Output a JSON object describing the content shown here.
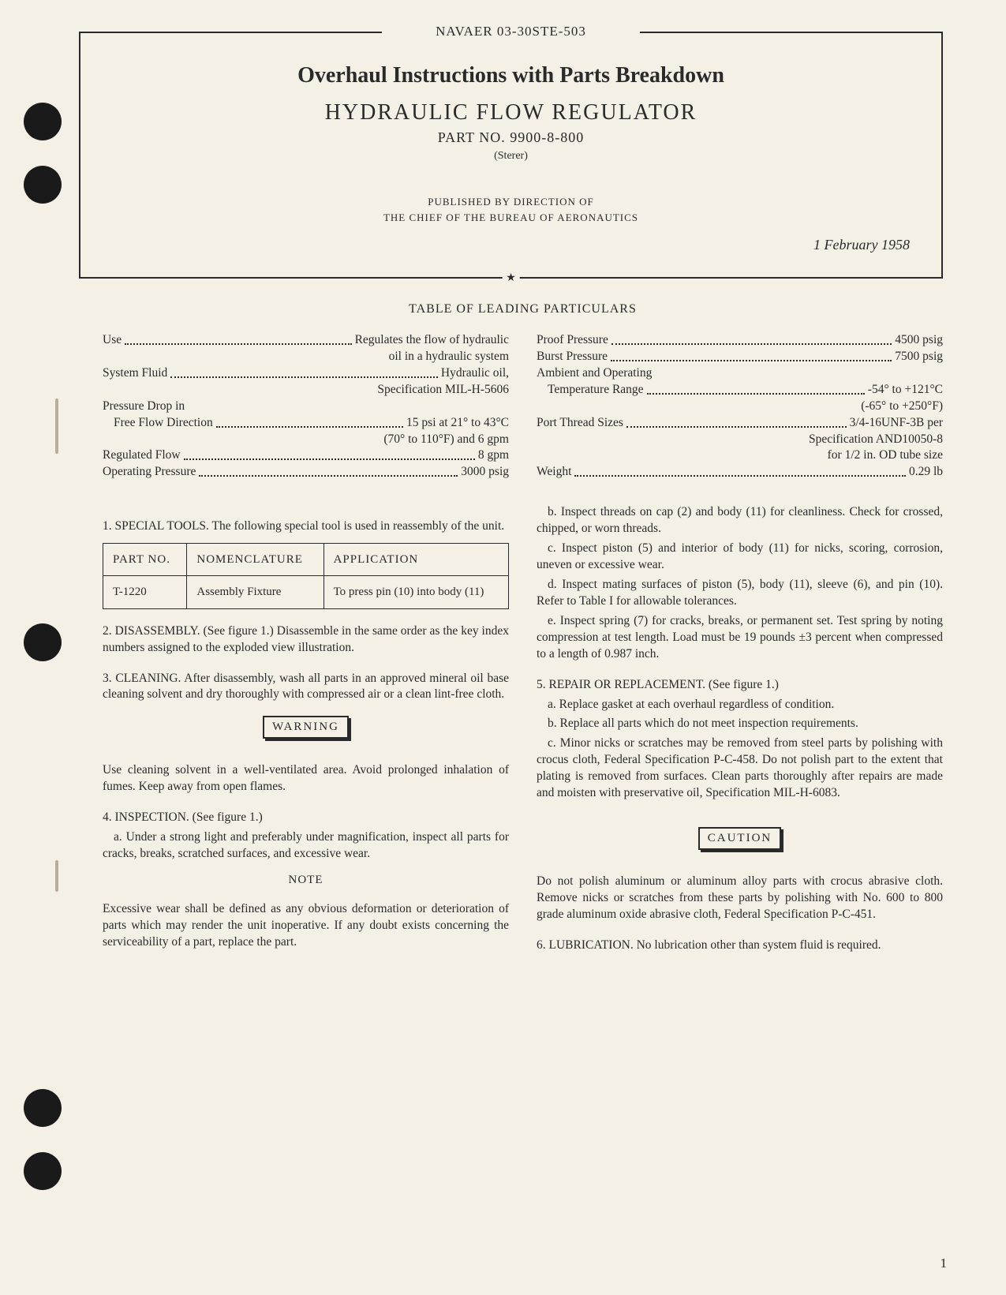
{
  "doc_id": "NAVAER 03-30STE-503",
  "title1": "Overhaul Instructions with Parts Breakdown",
  "title2": "HYDRAULIC FLOW REGULATOR",
  "part_no": "PART NO. 9900-8-800",
  "sterer": "(Sterer)",
  "published1": "PUBLISHED BY DIRECTION OF",
  "published2": "THE CHIEF OF THE BUREAU OF AERONAUTICS",
  "date": "1 February 1958",
  "table_heading": "TABLE OF LEADING PARTICULARS",
  "particulars_left": [
    {
      "label": "Use",
      "value": "Regulates the flow of hydraulic",
      "cont": "oil in a hydraulic system"
    },
    {
      "label": "System Fluid",
      "value": "Hydraulic oil,",
      "cont": "Specification MIL-H-5606"
    },
    {
      "label": "Pressure Drop in"
    },
    {
      "label": "Free Flow Direction",
      "indent": true,
      "value": "15 psi at 21° to 43°C",
      "cont": "(70° to 110°F) and 6 gpm"
    },
    {
      "label": "Regulated Flow",
      "value": "8 gpm"
    },
    {
      "label": "Operating Pressure",
      "value": "3000 psig"
    }
  ],
  "particulars_right": [
    {
      "label": "Proof Pressure",
      "value": "4500 psig"
    },
    {
      "label": "Burst Pressure",
      "value": "7500 psig"
    },
    {
      "label": "Ambient and Operating"
    },
    {
      "label": "Temperature Range",
      "indent": true,
      "value": "-54° to +121°C",
      "cont": "(-65° to +250°F)"
    },
    {
      "label": "Port Thread Sizes",
      "value": "3/4-16UNF-3B per",
      "cont": "Specification AND10050-8",
      "cont2": "for 1/2 in. OD tube size"
    },
    {
      "label": "Weight",
      "value": "0.29 lb"
    }
  ],
  "sec1_lead": "1. SPECIAL TOOLS.  The following special tool is used in reassembly of the unit.",
  "tool_headers": [
    "PART NO.",
    "NOMENCLATURE",
    "APPLICATION"
  ],
  "tool_row": [
    "T-1220",
    "Assembly Fixture",
    "To press pin (10) into body (11)"
  ],
  "sec2": "2. DISASSEMBLY. (See figure 1.)  Disassemble in the same order as the key index numbers assigned to the exploded view illustration.",
  "sec3": "3. CLEANING.  After disassembly, wash all parts in an approved mineral oil base cleaning solvent and dry thoroughly with compressed air or a clean lint-free cloth.",
  "warning_label": "WARNING",
  "warning_body": "Use cleaning solvent in a well-ventilated area. Avoid prolonged inhalation of fumes.  Keep away from open flames.",
  "sec4_lead": "4. INSPECTION. (See figure 1.)",
  "sec4a": "a. Under a strong light and preferably under magnification, inspect all parts for cracks, breaks, scratched surfaces, and excessive wear.",
  "note_label": "NOTE",
  "note_body": "Excessive wear shall be defined as any obvious deformation or deterioration of parts which may render the unit inoperative. If any doubt exists concerning the serviceability of a part, replace the part.",
  "sec4b": "b. Inspect threads on cap (2) and body (11) for cleanliness. Check for crossed, chipped, or worn threads.",
  "sec4c": "c. Inspect piston (5) and interior of body (11) for nicks, scoring, corrosion, uneven or excessive wear.",
  "sec4d": "d. Inspect mating surfaces of piston (5), body (11), sleeve (6), and pin (10). Refer to Table I for allowable tolerances.",
  "sec4e": "e. Inspect spring (7) for cracks, breaks, or permanent set. Test spring by noting compression at test length. Load must be 19 pounds ±3 percent when compressed to a length of 0.987 inch.",
  "sec5_lead": "5. REPAIR OR REPLACEMENT. (See figure 1.)",
  "sec5a": "a. Replace gasket at each overhaul regardless of condition.",
  "sec5b": "b. Replace all parts which do not meet inspection requirements.",
  "sec5c": "c. Minor nicks or scratches may be removed from steel parts by polishing with crocus cloth, Federal Specification P-C-458. Do not polish part to the extent that plating is removed from surfaces. Clean parts thoroughly after repairs are made and moisten with preservative oil, Specification MIL-H-6083.",
  "caution_label": "CAUTION",
  "caution_body": "Do not polish aluminum or aluminum alloy parts with crocus abrasive cloth. Remove nicks or scratches from these parts by polishing with No. 600 to 800 grade aluminum oxide abrasive cloth, Federal Specification P-C-451.",
  "sec6": "6. LUBRICATION.  No lubrication other than system fluid is required.",
  "page_num": "1"
}
